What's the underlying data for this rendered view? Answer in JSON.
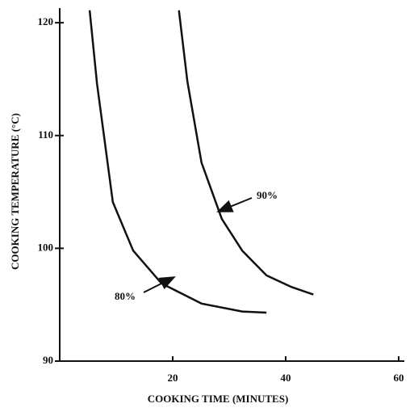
{
  "chart_data": {
    "type": "line",
    "xlabel": "COOKING TIME (MINUTES)",
    "ylabel": "COOKING TEMPERATURE (°C)",
    "xlim": [
      0,
      61
    ],
    "ylim": [
      90,
      121.3
    ],
    "xticks": [
      20,
      40,
      60
    ],
    "yticks": [
      90,
      100,
      110,
      120
    ],
    "series": [
      {
        "name": "80%",
        "color": "#111111",
        "x": [
          5.3,
          6.6,
          9.4,
          13,
          18,
          25.1,
          32.3,
          36.6
        ],
        "values": [
          121.1,
          114.6,
          104.1,
          99.8,
          96.9,
          95.1,
          94.4,
          94.3
        ]
      },
      {
        "name": "90%",
        "color": "#111111",
        "x": [
          21.1,
          22.6,
          25.1,
          28.7,
          32.3,
          36.6,
          40.9,
          44.9
        ],
        "values": [
          121.1,
          114.8,
          107.6,
          102.6,
          99.8,
          97.6,
          96.6,
          95.9
        ]
      }
    ]
  }
}
